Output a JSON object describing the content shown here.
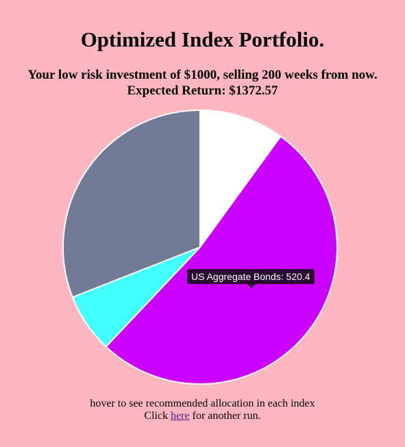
{
  "page": {
    "title": "Optimized Index Portfolio.",
    "subtitle_line1": "Your low risk investment of $1000, selling 200 weeks from now.",
    "subtitle_line2": "Expected Return: $1372.57",
    "hint": "hover to see recommended allocation in each index",
    "rerun_prefix": "Click ",
    "rerun_link": "here",
    "rerun_suffix": " for another run."
  },
  "tooltip": {
    "label": "US Aggregate Bonds: 520.4"
  },
  "chart_data": {
    "type": "pie",
    "total": 1000,
    "start": "top",
    "direction": "clockwise",
    "slices": [
      {
        "label": "",
        "value": 100,
        "color": "#ffffff"
      },
      {
        "label": "US Aggregate Bonds",
        "value": 520.4,
        "color": "#cc00ff"
      },
      {
        "label": "",
        "value": 70,
        "color": "#44ffff"
      },
      {
        "label": "",
        "value": 309.6,
        "color": "#717b96"
      }
    ]
  }
}
